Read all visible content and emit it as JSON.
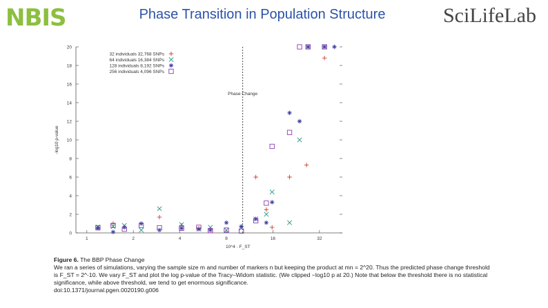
{
  "header": {
    "logo_left": "NBIS",
    "title": "Phase Transition in Population Structure",
    "logo_right": "SciLifeLab"
  },
  "chart_data": {
    "type": "scatter",
    "title": "",
    "xlabel": "10^4 · F_ST",
    "ylabel": "-log10 p-value",
    "x_scale": "log2",
    "xlim": [
      0.85,
      45
    ],
    "ylim": [
      0,
      20
    ],
    "x_ticks": [
      1,
      2,
      4,
      8,
      16,
      32
    ],
    "x_tick_labels": [
      "1",
      "2",
      "4",
      "8",
      "16",
      "32"
    ],
    "y_ticks": [
      0,
      2,
      4,
      6,
      8,
      10,
      12,
      14,
      16,
      18,
      20
    ],
    "y_tick_labels": [
      "0",
      "2",
      "4",
      "6",
      "8",
      "10",
      "12",
      "14",
      "16",
      "18",
      "20"
    ],
    "annotation": "Phase Change",
    "phase_change_x": 10.2,
    "legend_position": "top-left",
    "series": [
      {
        "name": "32 individuals  32,768 SNPs",
        "marker": "plus",
        "color": "#d03a2a",
        "points": [
          [
            1.18,
            0.6
          ],
          [
            1.48,
            1.0
          ],
          [
            2.95,
            1.7
          ],
          [
            4.1,
            0.8
          ],
          [
            5.3,
            0.5
          ],
          [
            12.4,
            6.0
          ],
          [
            14.5,
            2.5
          ],
          [
            15.8,
            0.6
          ],
          [
            20.5,
            6.0
          ],
          [
            26.4,
            7.3
          ],
          [
            34.5,
            18.8
          ]
        ]
      },
      {
        "name": "64 individuals  16,384 SNPs",
        "marker": "x",
        "color": "#1c9a80",
        "points": [
          [
            1.18,
            0.65
          ],
          [
            1.48,
            0.7
          ],
          [
            1.75,
            0.8
          ],
          [
            2.25,
            0.3
          ],
          [
            2.95,
            2.6
          ],
          [
            4.1,
            0.9
          ],
          [
            5.3,
            0.4
          ],
          [
            6.3,
            0.6
          ],
          [
            8.0,
            0.3
          ],
          [
            10.0,
            0.5
          ],
          [
            12.4,
            1.5
          ],
          [
            14.5,
            2.0
          ],
          [
            15.8,
            4.4
          ],
          [
            20.5,
            1.1
          ],
          [
            23.8,
            10.0
          ],
          [
            27.0,
            20.0
          ],
          [
            34.5,
            20.0
          ]
        ]
      },
      {
        "name": "128 individuals  8,192 SNPs",
        "marker": "asterisk",
        "color": "#3a3aa0",
        "points": [
          [
            1.18,
            0.5
          ],
          [
            1.48,
            0.1
          ],
          [
            1.75,
            0.6
          ],
          [
            2.25,
            1.0
          ],
          [
            2.95,
            0.3
          ],
          [
            4.1,
            0.5
          ],
          [
            5.3,
            0.4
          ],
          [
            6.3,
            0.3
          ],
          [
            8.0,
            1.1
          ],
          [
            10.0,
            0.7
          ],
          [
            12.4,
            1.5
          ],
          [
            14.5,
            1.1
          ],
          [
            15.8,
            3.3
          ],
          [
            20.5,
            12.9
          ],
          [
            23.8,
            12.0
          ],
          [
            27.0,
            20.0
          ],
          [
            34.5,
            20.0
          ],
          [
            40.0,
            20.0
          ]
        ]
      },
      {
        "name": "256 individuals  4,096 SNPs",
        "marker": "square",
        "color": "#8a3ab0",
        "points": [
          [
            1.18,
            0.55
          ],
          [
            1.48,
            0.8
          ],
          [
            1.75,
            0.4
          ],
          [
            2.25,
            0.8
          ],
          [
            2.95,
            0.55
          ],
          [
            4.1,
            0.5
          ],
          [
            5.3,
            0.6
          ],
          [
            6.3,
            0.25
          ],
          [
            8.0,
            0.3
          ],
          [
            10.0,
            0.2
          ],
          [
            12.4,
            1.3
          ],
          [
            14.5,
            3.2
          ],
          [
            15.8,
            9.3
          ],
          [
            20.5,
            10.8
          ],
          [
            23.8,
            20.0
          ],
          [
            27.0,
            20.0
          ],
          [
            34.5,
            20.0
          ]
        ]
      }
    ]
  },
  "caption": {
    "figure_label": "Figure 6.",
    "figure_title": "The BBP Phase Change",
    "text": "We ran a series of simulations, varying the sample size m and number of markers n but keeping the product at mn = 2^20. Thus the predicted phase change threshold is F_ST = 2^-10. We vary F_ST and plot the log p-value of the Tracy–Widom statistic. (We clipped −log10 p at 20.) Note that below the threshold there is no statistical significance, while above threshold, we tend to get enormous significance.",
    "doi": "doi:10.1371/journal.pgen.0020190.g006"
  }
}
